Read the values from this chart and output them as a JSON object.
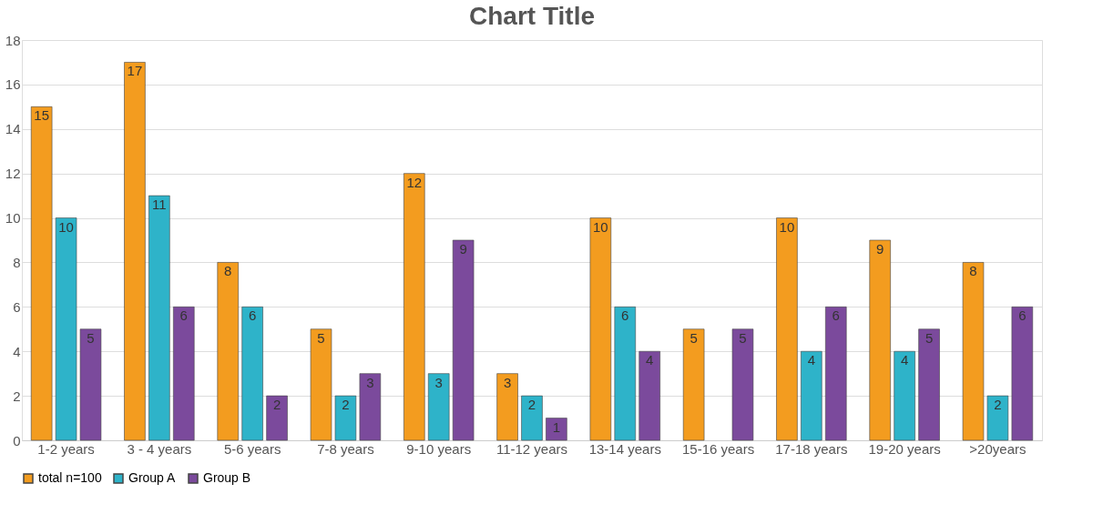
{
  "chart_data": {
    "type": "bar",
    "title": "Chart Title",
    "categories": [
      "1-2 years",
      "3 - 4 years",
      "5-6 years",
      "7-8 years",
      "9-10 years",
      "11-12 years",
      "13-14 years",
      "15-16 years",
      "17-18 years",
      "19-20 years",
      ">20years"
    ],
    "series": [
      {
        "name": "total n=100",
        "color": "#f39c1f",
        "values": [
          15,
          17,
          8,
          5,
          12,
          3,
          10,
          5,
          10,
          9,
          8
        ]
      },
      {
        "name": "Group A",
        "color": "#2eb3c9",
        "values": [
          10,
          11,
          6,
          2,
          3,
          2,
          6,
          null,
          4,
          4,
          2
        ]
      },
      {
        "name": "Group B",
        "color": "#7b4a9c",
        "values": [
          5,
          6,
          2,
          3,
          9,
          1,
          4,
          5,
          6,
          5,
          6
        ]
      }
    ],
    "ylim": [
      0,
      18
    ],
    "yticks": [
      0,
      2,
      4,
      6,
      8,
      10,
      12,
      14,
      16,
      18
    ],
    "grid": "y",
    "legend": "bottom",
    "data_labels": true
  }
}
